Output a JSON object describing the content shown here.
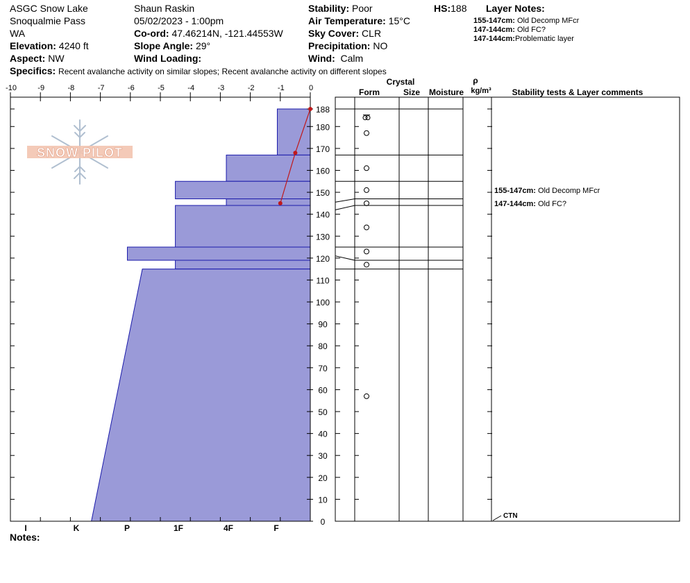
{
  "header": {
    "location": "ASGC Snow Lake",
    "area": "Snoqualmie Pass",
    "state": "WA",
    "elevation_label": "Elevation:",
    "elevation": "4240 ft",
    "aspect_label": "Aspect:",
    "aspect": "NW",
    "observer": "Shaun Raskin",
    "datetime": "05/02/2023 - 1:00pm",
    "coord_label": "Co-ord:",
    "coord": "47.46214N, -121.44553W",
    "slope_label": "Slope Angle:",
    "slope": "29°",
    "wind_loading_label": "Wind Loading:",
    "wind_loading": "",
    "stability_label": "Stability:",
    "stability": "Poor",
    "air_temp_label": "Air Temperature:",
    "air_temp": "15°C",
    "sky_label": "Sky Cover:",
    "sky": "CLR",
    "precip_label": "Precipitation:",
    "precip": "NO",
    "wind_label": "Wind:",
    "wind": "Calm",
    "hs_label": "HS:",
    "hs": "188",
    "layer_notes_title": "Layer Notes:",
    "layer_notes": [
      {
        "range": "155-147cm:",
        "text": "Old Decomp MFcr"
      },
      {
        "range": "147-144cm:",
        "text": "Old FC?"
      },
      {
        "range": "147-144cm:",
        "text": "Problematic layer"
      }
    ],
    "specifics_label": "Specifics:",
    "specifics": "Recent avalanche activity on similar slopes; Recent avalanche activity on different slopes"
  },
  "logo_text": "SNOW PILOT",
  "notes_label": "Notes:",
  "table_headers": {
    "crystal": "Crystal",
    "form": "Form",
    "size": "Size",
    "moisture": "Moisture",
    "rho": "ρ",
    "density": "kg/m³",
    "comments": "Stability tests & Layer comments"
  },
  "colors": {
    "hardness_fill": "#9a9ad8",
    "hardness_stroke": "#1a1aaa",
    "temp_line": "#c0181a"
  },
  "chart_data": {
    "type": "area",
    "temp_axis": {
      "range": [
        -10,
        0
      ],
      "ticks": [
        -10,
        -9,
        -8,
        -7,
        -6,
        -5,
        -4,
        -3,
        -2,
        -1,
        0
      ]
    },
    "depth_axis": {
      "range": [
        0,
        188
      ],
      "ticks": [
        0,
        10,
        20,
        30,
        40,
        50,
        60,
        70,
        80,
        90,
        100,
        110,
        120,
        130,
        140,
        150,
        160,
        170,
        180,
        188
      ]
    },
    "hardness_axis": {
      "labels": [
        "I",
        "K",
        "P",
        "1F",
        "4F",
        "F"
      ]
    },
    "hardness_profile": [
      {
        "top": 188,
        "bottom": 167,
        "temp_equiv": -1.1
      },
      {
        "top": 167,
        "bottom": 155,
        "temp_equiv": -2.8
      },
      {
        "top": 155,
        "bottom": 147,
        "temp_equiv": -4.5
      },
      {
        "top": 147,
        "bottom": 144,
        "temp_equiv": -2.8
      },
      {
        "top": 144,
        "bottom": 125,
        "temp_equiv": -4.5
      },
      {
        "top": 125,
        "bottom": 119,
        "temp_equiv": -6.1
      },
      {
        "top": 119,
        "bottom": 115,
        "temp_equiv": -4.5
      },
      {
        "top": 115,
        "bottom": 0,
        "temp_equiv_top": -5.6,
        "temp_equiv_bottom": -7.3
      }
    ],
    "temperature_profile": [
      {
        "depth": 188,
        "temp": 0
      },
      {
        "depth": 168,
        "temp": -0.5
      },
      {
        "depth": 145,
        "temp": -1
      }
    ],
    "layer_boundaries": [
      188,
      167,
      155,
      147,
      144,
      125,
      119,
      115
    ],
    "layer_boundaries_left": [
      188,
      167,
      155,
      145.5,
      142,
      125,
      121,
      115
    ],
    "grain_markers": [
      {
        "depth": 184,
        "form": "rounding-faceted"
      },
      {
        "depth": 177,
        "form": "round"
      },
      {
        "depth": 161,
        "form": "round"
      },
      {
        "depth": 151,
        "form": "round"
      },
      {
        "depth": 145,
        "form": "round"
      },
      {
        "depth": 134,
        "form": "round"
      },
      {
        "depth": 123,
        "form": "round"
      },
      {
        "depth": 117,
        "form": "round"
      },
      {
        "depth": 57,
        "form": "round"
      }
    ],
    "layer_comments": [
      {
        "depth": 151,
        "range": "155-147cm:",
        "text": "Old Decomp MFcr"
      },
      {
        "depth": 145,
        "range": "147-144cm:",
        "text": "Old FC?"
      }
    ],
    "stability_tests": [
      {
        "depth": 0,
        "label": "CTN"
      }
    ]
  }
}
